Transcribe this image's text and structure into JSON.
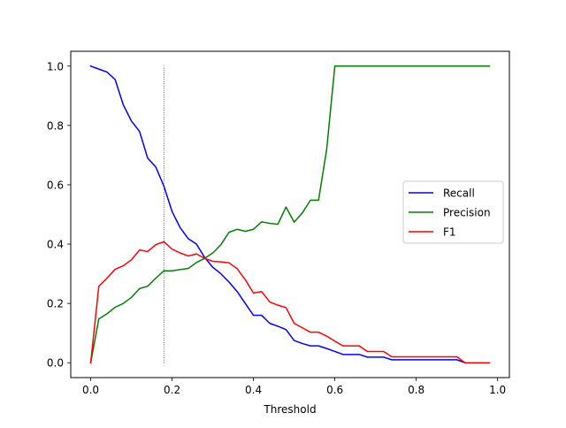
{
  "chart_data": {
    "type": "line",
    "xlabel": "Threshold",
    "ylabel": "",
    "title": "",
    "xlim": [
      -0.049,
      1.029
    ],
    "ylim": [
      -0.05,
      1.05
    ],
    "x_ticks": [
      0.0,
      0.2,
      0.4,
      0.6,
      0.8,
      1.0
    ],
    "x_tick_labels": [
      "0.0",
      "0.2",
      "0.4",
      "0.6",
      "0.8",
      "1.0"
    ],
    "y_ticks": [
      0.0,
      0.2,
      0.4,
      0.6,
      0.8,
      1.0
    ],
    "y_tick_labels": [
      "0.0",
      "0.2",
      "0.4",
      "0.6",
      "0.8",
      "1.0"
    ],
    "legend_position": "center-right",
    "grid": false,
    "vertical_marker": {
      "x": 0.18,
      "y_range": [
        0.0,
        1.0
      ],
      "color": "#c00000",
      "style": "dotted"
    },
    "x": [
      0.0,
      0.02,
      0.04,
      0.06,
      0.08,
      0.1,
      0.12,
      0.14,
      0.16,
      0.18,
      0.2,
      0.22,
      0.24,
      0.26,
      0.28,
      0.3,
      0.32,
      0.34,
      0.36,
      0.38,
      0.4,
      0.42,
      0.44,
      0.46,
      0.48,
      0.5,
      0.52,
      0.54,
      0.56,
      0.58,
      0.6,
      0.62,
      0.64,
      0.66,
      0.68,
      0.7,
      0.72,
      0.74,
      0.76,
      0.78,
      0.8,
      0.82,
      0.84,
      0.86,
      0.88,
      0.9,
      0.92,
      0.94,
      0.96,
      0.98
    ],
    "series": [
      {
        "name": "Recall",
        "color": "#0000ff",
        "values": [
          1.0,
          0.99,
          0.98,
          0.955,
          0.87,
          0.815,
          0.78,
          0.69,
          0.66,
          0.595,
          0.51,
          0.455,
          0.418,
          0.4,
          0.355,
          0.322,
          0.3,
          0.272,
          0.24,
          0.2,
          0.16,
          0.16,
          0.133,
          0.123,
          0.112,
          0.075,
          0.065,
          0.057,
          0.057,
          0.048,
          0.038,
          0.028,
          0.028,
          0.028,
          0.019,
          0.019,
          0.019,
          0.01,
          0.01,
          0.01,
          0.01,
          0.01,
          0.01,
          0.01,
          0.01,
          0.01,
          0.0,
          0.0,
          0.0,
          0.0
        ]
      },
      {
        "name": "Precision",
        "color": "#008000",
        "values": [
          0.0,
          0.148,
          0.165,
          0.187,
          0.2,
          0.22,
          0.25,
          0.258,
          0.285,
          0.31,
          0.31,
          0.314,
          0.318,
          0.338,
          0.352,
          0.37,
          0.398,
          0.44,
          0.45,
          0.443,
          0.45,
          0.475,
          0.47,
          0.467,
          0.525,
          0.474,
          0.505,
          0.548,
          0.548,
          0.72,
          1.0,
          1.0,
          1.0,
          1.0,
          1.0,
          1.0,
          1.0,
          1.0,
          1.0,
          1.0,
          1.0,
          1.0,
          1.0,
          1.0,
          1.0,
          1.0,
          1.0,
          1.0,
          1.0,
          1.0
        ]
      },
      {
        "name": "F1",
        "color": "#ff0000",
        "values": [
          0.0,
          0.258,
          0.285,
          0.315,
          0.327,
          0.347,
          0.38,
          0.375,
          0.398,
          0.408,
          0.383,
          0.37,
          0.36,
          0.367,
          0.352,
          0.342,
          0.34,
          0.337,
          0.317,
          0.28,
          0.235,
          0.24,
          0.205,
          0.194,
          0.186,
          0.133,
          0.118,
          0.103,
          0.103,
          0.09,
          0.073,
          0.057,
          0.057,
          0.057,
          0.038,
          0.038,
          0.038,
          0.02,
          0.02,
          0.02,
          0.02,
          0.02,
          0.02,
          0.02,
          0.02,
          0.02,
          0.0,
          0.0,
          0.0,
          0.0
        ]
      }
    ]
  }
}
